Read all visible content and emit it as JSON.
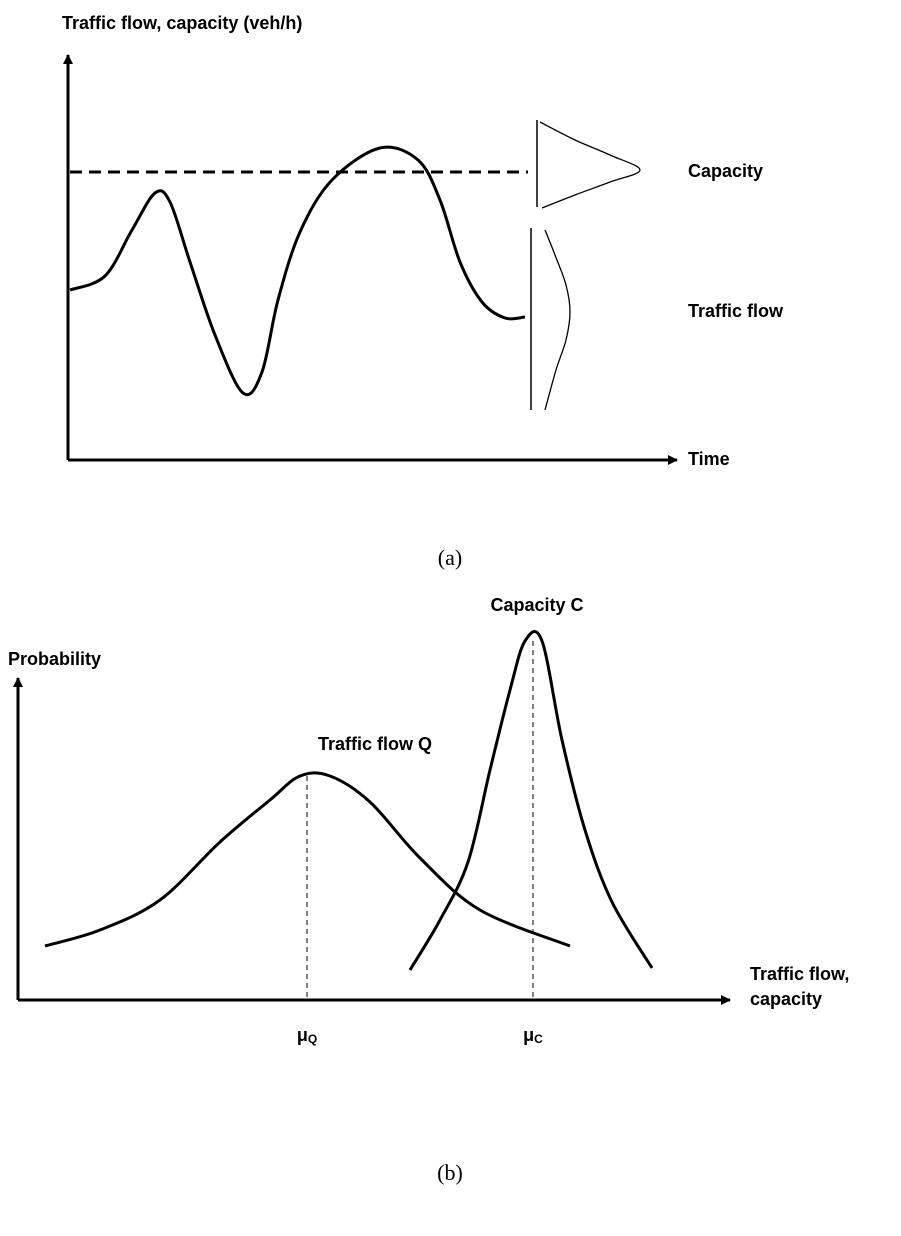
{
  "panel_a": {
    "y_axis_label": "Traffic flow, capacity (veh/h)",
    "capacity_label": "Capacity",
    "flow_label": "Traffic flow",
    "x_axis_label": "Time",
    "caption": "(a)"
  },
  "panel_b": {
    "y_axis_label": "Probability",
    "capacity_label": "Capacity C",
    "flow_label": "Traffic flow Q",
    "x_axis_label": [
      "Traffic flow,",
      "capacity"
    ],
    "mean_flow": {
      "symbol": "μ",
      "subscript": "Q"
    },
    "mean_capacity": {
      "symbol": "μ",
      "subscript": "C"
    },
    "caption": "(b)"
  }
}
